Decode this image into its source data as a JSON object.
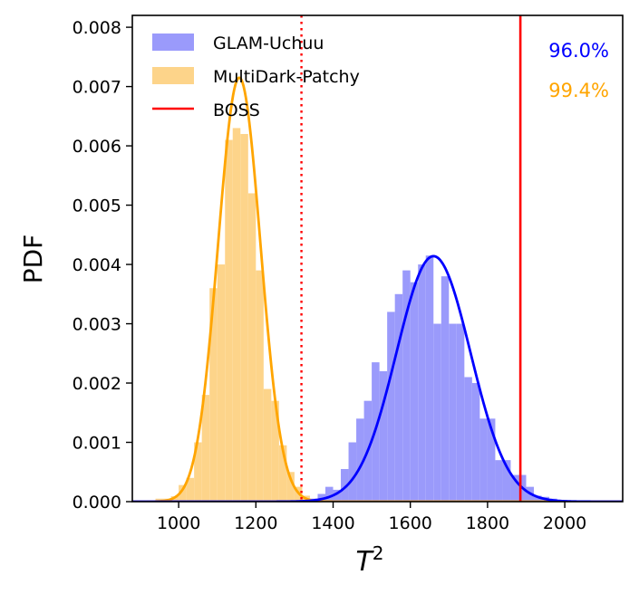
{
  "chart_data": {
    "type": "histogram",
    "xlabel": "T",
    "xlabel_superscript": "2",
    "ylabel": "PDF",
    "xlim": [
      880,
      2150
    ],
    "ylim": [
      0,
      0.0082
    ],
    "xticks": [
      "1000",
      "1200",
      "1400",
      "1600",
      "1800",
      "2000"
    ],
    "xtick_values": [
      1000,
      1200,
      1400,
      1600,
      1800,
      2000
    ],
    "yticks": [
      "0.000",
      "0.001",
      "0.002",
      "0.003",
      "0.004",
      "0.005",
      "0.006",
      "0.007",
      "0.008"
    ],
    "ytick_values": [
      0,
      0.001,
      0.002,
      0.003,
      0.004,
      0.005,
      0.006,
      0.007,
      0.008
    ],
    "legend_position": "top-left",
    "series": [
      {
        "name": "GLAM-Uchuu",
        "kind": "histogram+gaussian",
        "color": "#0000ff",
        "fill": "#9a9afb",
        "bin_width": 20,
        "bins": [
          [
            1340,
            5e-05
          ],
          [
            1360,
            0.00013
          ],
          [
            1380,
            0.00025
          ],
          [
            1400,
            0.0002
          ],
          [
            1420,
            0.00055
          ],
          [
            1440,
            0.001
          ],
          [
            1460,
            0.0014
          ],
          [
            1480,
            0.0017
          ],
          [
            1500,
            0.00235
          ],
          [
            1520,
            0.0022
          ],
          [
            1540,
            0.0032
          ],
          [
            1560,
            0.0035
          ],
          [
            1580,
            0.0039
          ],
          [
            1600,
            0.0037
          ],
          [
            1620,
            0.004
          ],
          [
            1640,
            0.00415
          ],
          [
            1660,
            0.003
          ],
          [
            1680,
            0.0038
          ],
          [
            1700,
            0.003
          ],
          [
            1720,
            0.003
          ],
          [
            1740,
            0.0021
          ],
          [
            1760,
            0.002
          ],
          [
            1780,
            0.0014
          ],
          [
            1800,
            0.0014
          ],
          [
            1820,
            0.0007
          ],
          [
            1840,
            0.0007
          ],
          [
            1860,
            0.00045
          ],
          [
            1880,
            0.00045
          ],
          [
            1900,
            0.00025
          ],
          [
            1920,
            0.0001
          ],
          [
            1940,
            8e-05
          ],
          [
            1960,
            5e-05
          ],
          [
            1980,
            3e-05
          ],
          [
            2000,
            2e-05
          ]
        ],
        "fit": {
          "mean": 1660,
          "sd": 96,
          "peak": 0.00414
        }
      },
      {
        "name": "MultiDark-Patchy",
        "kind": "histogram+gaussian",
        "color": "#ffa500",
        "fill": "#fdd48a",
        "bin_width": 20,
        "bins": [
          [
            940,
            5e-05
          ],
          [
            960,
            5e-05
          ],
          [
            980,
            9e-05
          ],
          [
            1000,
            0.00028
          ],
          [
            1020,
            0.0004
          ],
          [
            1040,
            0.001
          ],
          [
            1060,
            0.0018
          ],
          [
            1080,
            0.0036
          ],
          [
            1100,
            0.004
          ],
          [
            1120,
            0.0061
          ],
          [
            1140,
            0.0063
          ],
          [
            1160,
            0.0062
          ],
          [
            1180,
            0.0052
          ],
          [
            1200,
            0.0039
          ],
          [
            1220,
            0.0019
          ],
          [
            1240,
            0.0017
          ],
          [
            1260,
            0.00095
          ],
          [
            1280,
            0.0005
          ],
          [
            1300,
            0.00025
          ],
          [
            1320,
            0.0001
          ],
          [
            1340,
            5e-05
          ]
        ],
        "fit": {
          "mean": 1157,
          "sd": 55,
          "peak": 0.00715
        }
      },
      {
        "name": "BOSS",
        "kind": "vline",
        "color": "#ff0000",
        "x": 1885
      }
    ],
    "reference_lines": [
      {
        "x": 1318,
        "style": "dotted",
        "color": "#ff0000"
      }
    ],
    "annotations": [
      {
        "text": "96.0%",
        "color": "#0000ff",
        "position": "top-right"
      },
      {
        "text": "99.4%",
        "color": "#ffa500",
        "position": "top-right, below"
      }
    ]
  }
}
